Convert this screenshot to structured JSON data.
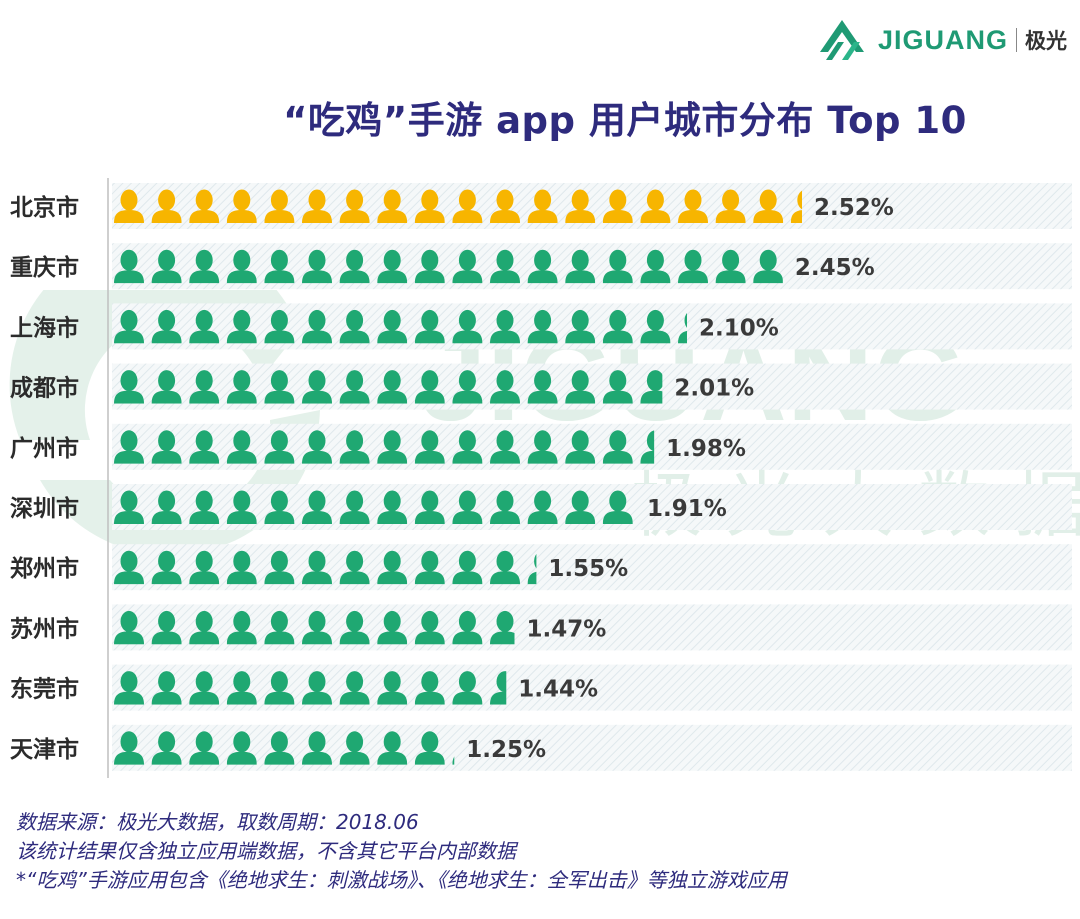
{
  "brand": {
    "name": "JIGUANG",
    "name_cn": "极光"
  },
  "watermark": {
    "text_en": "JIGUANG",
    "text_cn": "极光大数据"
  },
  "colors": {
    "highlight": "#f7b500",
    "primary": "#1fa872",
    "title": "#2e2b7d",
    "track_stripe": "#dfe8ec"
  },
  "chart_data": {
    "type": "bar",
    "title": "“吃鸡”手游 app 用户城市分布 Top 10",
    "categories": [
      "北京市",
      "重庆市",
      "上海市",
      "成都市",
      "广州市",
      "深圳市",
      "郑州市",
      "苏州市",
      "东莞市",
      "天津市"
    ],
    "values": [
      2.52,
      2.45,
      2.1,
      2.01,
      1.98,
      1.91,
      1.55,
      1.47,
      1.44,
      1.25
    ],
    "value_labels": [
      "2.52%",
      "2.45%",
      "2.10%",
      "2.01%",
      "1.98%",
      "1.91%",
      "1.55%",
      "1.47%",
      "1.44%",
      "1.25%"
    ],
    "unit": "%",
    "highlight_index": 0
  },
  "notes": {
    "line1": "数据来源：极光大数据，取数周期：2018.06",
    "line2": "该统计结果仅含独立应用端数据，不含其它平台内部数据",
    "line3": "*“吃鸡”手游应用包含《绝地求生：刺激战场》、《绝地求生：全军出击》等独立游戏应用"
  }
}
